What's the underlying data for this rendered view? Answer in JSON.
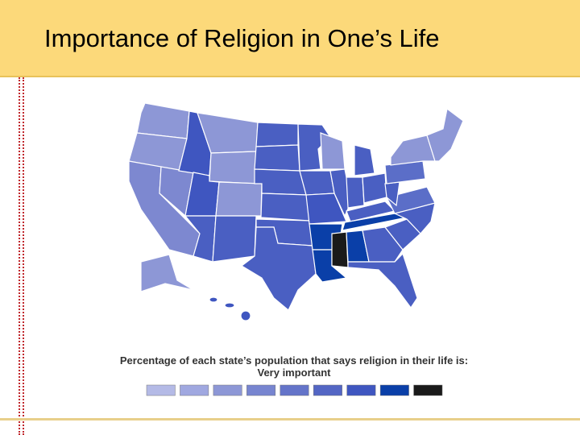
{
  "header": {
    "title": "Importance of Religion in One’s Life"
  },
  "legend": {
    "caption": "Percentage of each state’s population that says religion in their life is:",
    "subcaption": "Very important",
    "colors": [
      "#b4bae6",
      "#a0a8e0",
      "#8d97d6",
      "#7785d0",
      "#6474c9",
      "#5366c4",
      "#3f56c0",
      "#0a3fa8",
      "#1a1a1a"
    ]
  }
}
